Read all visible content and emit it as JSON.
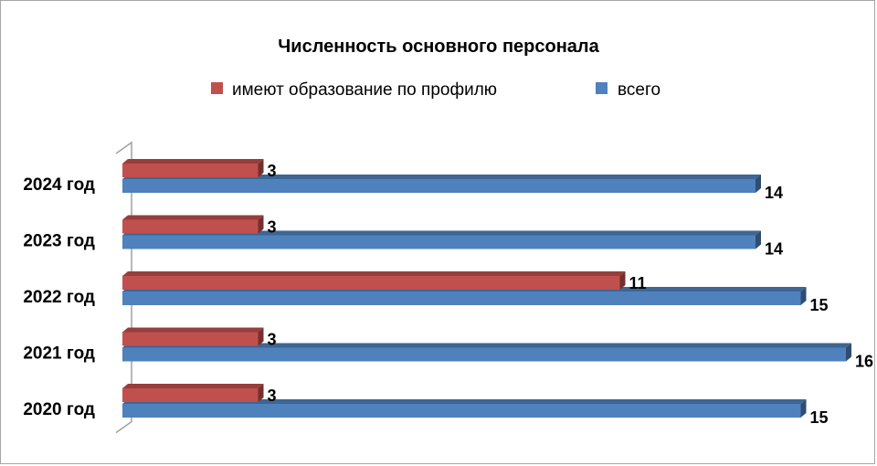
{
  "chart_data": {
    "type": "bar",
    "orientation": "horizontal",
    "title": "Численность основного персонала",
    "categories": [
      "2024 год",
      "2023 год",
      "2022 год",
      "2021 год",
      "2020 год"
    ],
    "series": [
      {
        "name": "имеют образование по профилю",
        "values": [
          3,
          3,
          11,
          3,
          3
        ],
        "color": "#c0504d"
      },
      {
        "name": "всего",
        "values": [
          14,
          14,
          15,
          16,
          15
        ],
        "color": "#4f81bd"
      }
    ],
    "xlim": [
      0,
      16
    ],
    "legend_position": "top",
    "grid": false,
    "data_labels": true,
    "style": "3d"
  }
}
